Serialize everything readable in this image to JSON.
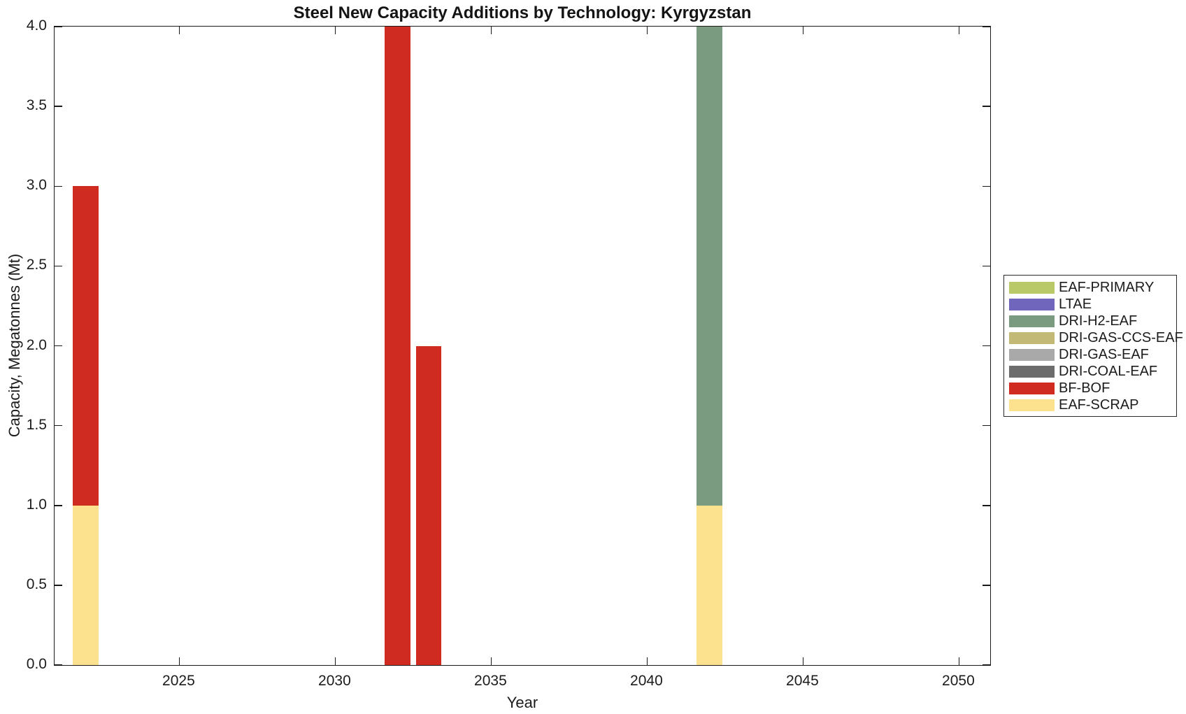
{
  "chart_data": {
    "type": "bar",
    "stacked": true,
    "title": "Steel New Capacity Additions by Technology: Kyrgyzstan",
    "xlabel": "Year",
    "ylabel": "Capacity, Megatonnes (Mt)",
    "xlim": [
      2021,
      2051
    ],
    "ylim": [
      0,
      4
    ],
    "grid": false,
    "legend_position": "right-outside",
    "bar_width_years": 0.82,
    "xticks": [
      2025,
      2030,
      2035,
      2040,
      2045,
      2050
    ],
    "xtick_labels": [
      "2025",
      "2030",
      "2035",
      "2040",
      "2045",
      "2050"
    ],
    "yticks": [
      0,
      0.5,
      1,
      1.5,
      2,
      2.5,
      3,
      3.5,
      4
    ],
    "ytick_labels": [
      "0.0",
      "0.5",
      "1.0",
      "1.5",
      "2.0",
      "2.5",
      "3.0",
      "3.5",
      "4.0"
    ],
    "legend": [
      {
        "label": "EAF-PRIMARY",
        "color": "#b9c968"
      },
      {
        "label": "LTAE",
        "color": "#7066bb"
      },
      {
        "label": "DRI-H2-EAF",
        "color": "#7b9b81"
      },
      {
        "label": "DRI-GAS-CCS-EAF",
        "color": "#c3b977"
      },
      {
        "label": "DRI-GAS-EAF",
        "color": "#a9a9a9"
      },
      {
        "label": "DRI-COAL-EAF",
        "color": "#6c6c6c"
      },
      {
        "label": "BF-BOF",
        "color": "#d02b20"
      },
      {
        "label": "EAF-SCRAP",
        "color": "#fce18f"
      }
    ],
    "bars": [
      {
        "year": 2022,
        "segments": [
          {
            "series": "EAF-SCRAP",
            "from": 0,
            "to": 1
          },
          {
            "series": "BF-BOF",
            "from": 1,
            "to": 3
          }
        ]
      },
      {
        "year": 2032,
        "segments": [
          {
            "series": "BF-BOF",
            "from": 0,
            "to": 4
          }
        ]
      },
      {
        "year": 2033,
        "segments": [
          {
            "series": "BF-BOF",
            "from": 0,
            "to": 2
          }
        ]
      },
      {
        "year": 2042,
        "segments": [
          {
            "series": "EAF-SCRAP",
            "from": 0,
            "to": 1
          },
          {
            "series": "DRI-H2-EAF",
            "from": 1,
            "to": 4
          }
        ]
      }
    ]
  }
}
